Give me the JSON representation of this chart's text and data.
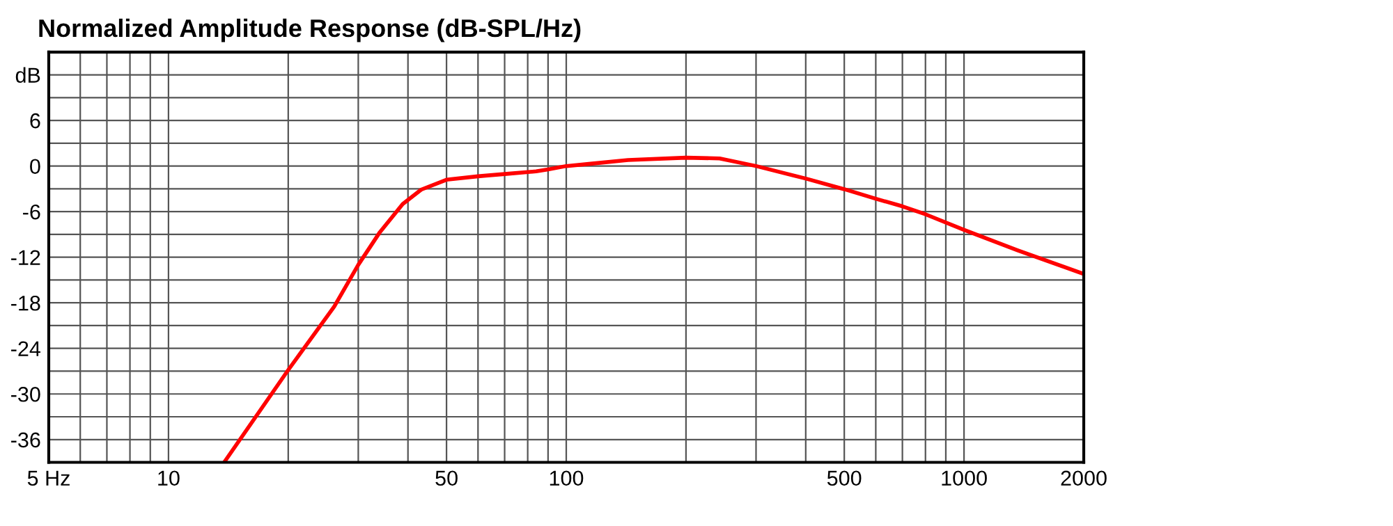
{
  "chart_data": {
    "type": "line",
    "title": "Normalized Amplitude Response (dB-SPL/Hz)",
    "log": "x",
    "grid": true,
    "marker": "none",
    "line_style": "solid",
    "xlim": [
      5,
      2000
    ],
    "ylim": [
      -39,
      15
    ],
    "xticks": [
      {
        "value": 5,
        "label": "5 Hz"
      },
      {
        "value": 6,
        "label": null
      },
      {
        "value": 7,
        "label": null
      },
      {
        "value": 8,
        "label": null
      },
      {
        "value": 9,
        "label": null
      },
      10,
      {
        "value": 20,
        "label": null
      },
      {
        "value": 30,
        "label": null
      },
      {
        "value": 40,
        "label": null
      },
      50,
      {
        "value": 60,
        "label": null
      },
      {
        "value": 70,
        "label": null
      },
      {
        "value": 80,
        "label": null
      },
      {
        "value": 90,
        "label": null
      },
      100,
      {
        "value": 200,
        "label": null
      },
      {
        "value": 300,
        "label": null
      },
      {
        "value": 400,
        "label": null
      },
      500,
      {
        "value": 600,
        "label": null
      },
      {
        "value": 700,
        "label": null
      },
      {
        "value": 800,
        "label": null
      },
      {
        "value": 900,
        "label": null
      },
      1000,
      2000
    ],
    "yticks": [
      {
        "value": 12,
        "label": "dB"
      },
      {
        "value": 9,
        "label": null
      },
      6,
      {
        "value": 3,
        "label": null
      },
      0,
      {
        "value": -3,
        "label": null
      },
      -6,
      {
        "value": -9,
        "label": null
      },
      -12,
      {
        "value": -15,
        "label": null
      },
      -18,
      {
        "value": -21,
        "label": null
      },
      -24,
      {
        "value": -27,
        "label": null
      },
      -30,
      {
        "value": -33,
        "label": null
      },
      -36
    ],
    "series": [
      {
        "color": "#ff0000",
        "x": [
          13.8,
          19.9,
          26.1,
          30,
          34,
          38.8,
          43.2,
          50,
          60,
          70,
          84,
          90,
          100,
          115,
          143,
          200,
          243,
          300,
          400,
          500,
          600,
          700,
          800,
          1000,
          1365,
          2000
        ],
        "values": [
          -39,
          -27,
          -18.5,
          -13,
          -8.7,
          -5,
          -3.1,
          -1.8,
          -1.35,
          -1.05,
          -0.7,
          -0.45,
          0,
          0.3,
          0.8,
          1.1,
          1,
          0,
          -1.65,
          -3.05,
          -4.3,
          -5.3,
          -6.35,
          -8.4,
          -11.1,
          -14.2
        ]
      }
    ]
  }
}
